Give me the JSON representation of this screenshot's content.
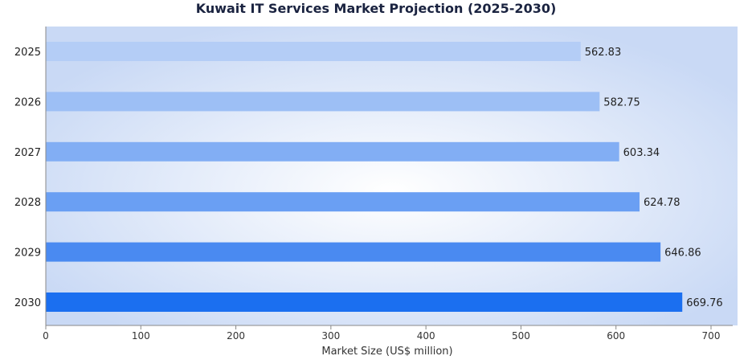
{
  "chart_data": {
    "type": "bar",
    "orientation": "horizontal",
    "title": "Kuwait IT Services Market Projection (2025-2030)",
    "xlabel": "Market Size (US$ million)",
    "ylabel": "",
    "categories": [
      "2025",
      "2026",
      "2027",
      "2028",
      "2029",
      "2030"
    ],
    "values": [
      562.83,
      582.75,
      603.34,
      624.78,
      646.86,
      669.76
    ],
    "value_labels": [
      "562.83",
      "582.75",
      "603.34",
      "624.78",
      "646.86",
      "669.76"
    ],
    "xlim": [
      0,
      700
    ],
    "xticks": [
      "0",
      "100",
      "200",
      "300",
      "400",
      "500",
      "600",
      "700"
    ],
    "colors": [
      "#b4cdf6",
      "#9dbff5",
      "#82aef4",
      "#6a9ff3",
      "#4a8af1",
      "#1b6ff0"
    ],
    "grid": false
  }
}
